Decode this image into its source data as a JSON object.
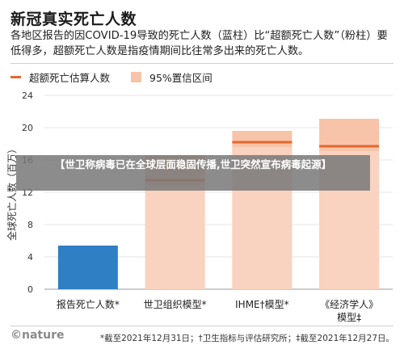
{
  "header": {
    "title": "新冠真实死亡人数",
    "subtitle": "各地区报告的因COVID-19导致的死亡人数（蓝柱）比“超额死亡人数”（粉柱）要低得多，超额死亡人数是指疫情期间比往常多出来的死亡人数。"
  },
  "legend": {
    "line_label": "超额死亡估算人数",
    "band_label": "95%置信区间"
  },
  "colors": {
    "reported_bar": "#2f7fc4",
    "excess_line": "#e5672f",
    "ci_band": "#f7c4a9",
    "ci_band_light": "#fbe0d1",
    "grid": "#e6e6e6",
    "axis_text": "#333333"
  },
  "overlay": {
    "banner_text": "【世卫称病毒已在全球层面稳固传播,世卫突然宣布病毒起源】"
  },
  "footer": {
    "logo": "©nature",
    "footnote": "*截至2021年12月31日；†卫生指标与评估研究所；‡截至2021年12月27日。"
  },
  "chart_data": {
    "type": "bar",
    "ylabel": "全球死亡人数（百万）",
    "ylim": [
      0,
      24
    ],
    "yticks": [
      "0",
      "4",
      "8",
      "12",
      "16",
      "20",
      "24"
    ],
    "categories": [
      "报告死亡人数*",
      "世卫组织模型*",
      "IHME†模型*",
      "《经济学人》模型‡"
    ],
    "category_lines": [
      [
        "报告死亡人数*"
      ],
      [
        "世卫组织模型*"
      ],
      [
        "IHME†模型*"
      ],
      [
        "《经济学人》",
        "模型‡"
      ]
    ],
    "series": [
      {
        "name": "报告死亡人数",
        "kind": "bar",
        "values": [
          5.4,
          null,
          null,
          null
        ]
      },
      {
        "name": "超额死亡估算人数",
        "kind": "line",
        "values": [
          null,
          13.5,
          18.2,
          17.7
        ]
      },
      {
        "name": "95%置信区间",
        "kind": "band",
        "low": [
          null,
          0,
          0,
          0
        ],
        "high": [
          null,
          16.6,
          19.6,
          21.1
        ]
      }
    ]
  }
}
